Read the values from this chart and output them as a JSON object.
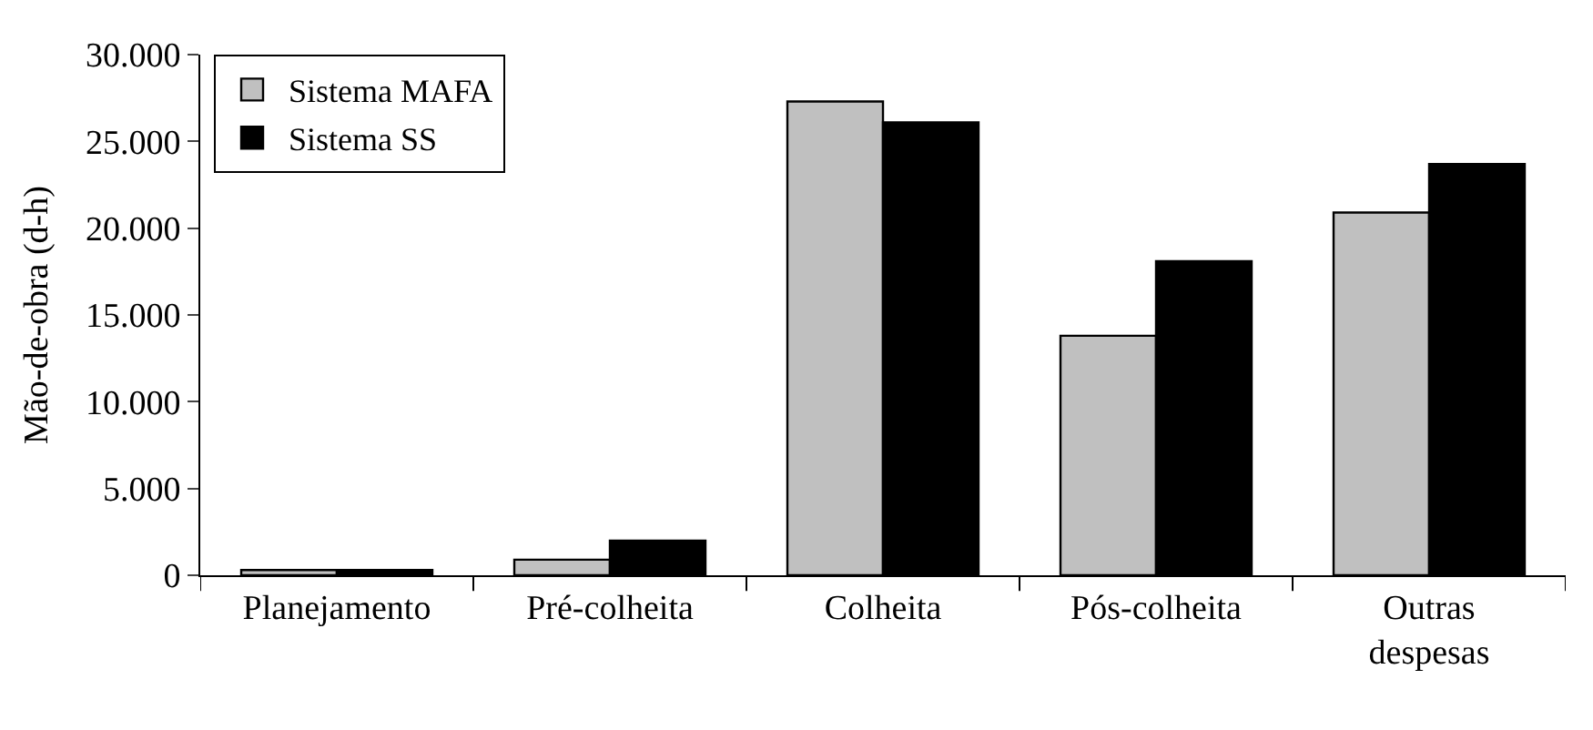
{
  "chart_data": {
    "type": "bar",
    "ylabel": "Mão-de-obra (d-h)",
    "categories": [
      "Planejamento",
      "Pré-colheita",
      "Colheita",
      "Pós-colheita",
      "Outras\ndespesas"
    ],
    "series": [
      {
        "name": "Sistema MAFA",
        "color": "#c0c0c0",
        "values": [
          300,
          900,
          27300,
          13800,
          20900
        ]
      },
      {
        "name": "Sistema SS",
        "color": "#000000",
        "values": [
          300,
          2000,
          26100,
          18100,
          23700
        ]
      }
    ],
    "ylim": [
      0,
      30000
    ],
    "yticks": [
      0,
      {
        "value": 5000,
        "label": "5.000"
      },
      {
        "value": 10000,
        "label": "10.000"
      },
      {
        "value": 15000,
        "label": "15.000"
      },
      {
        "value": 20000,
        "label": "20.000"
      },
      {
        "value": 25000,
        "label": "25.000"
      },
      {
        "value": 30000,
        "label": "30.000"
      }
    ],
    "legend": "top left"
  }
}
